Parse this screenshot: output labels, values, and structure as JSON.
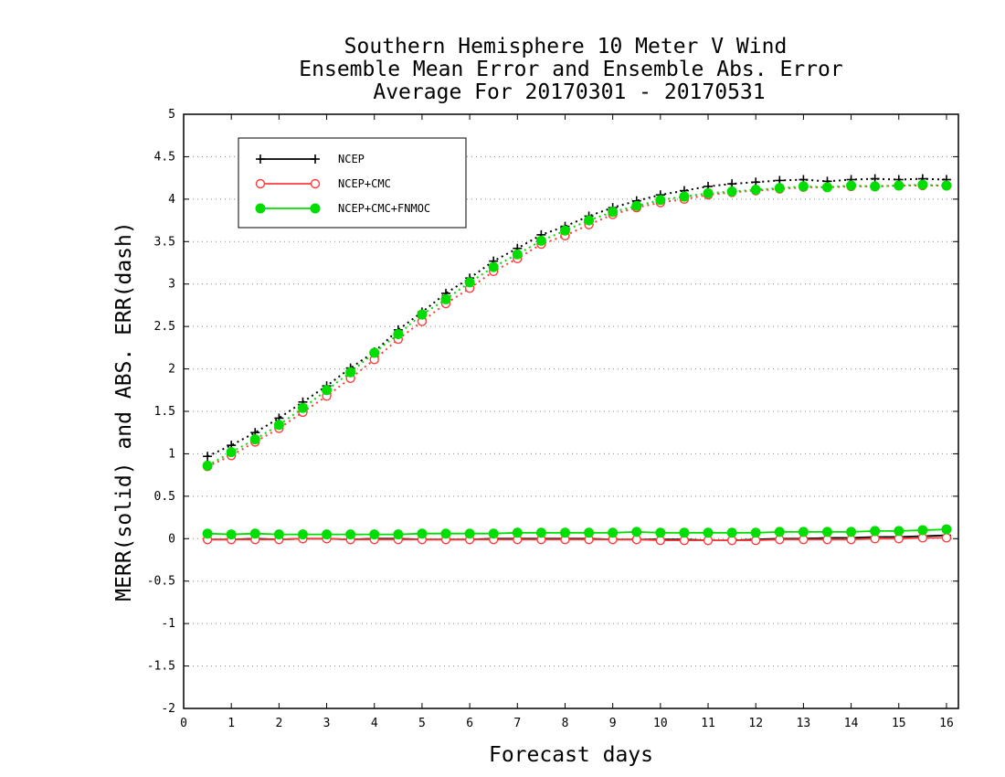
{
  "chart_data": {
    "type": "line",
    "title_lines": [
      "Southern Hemisphere 10 Meter V Wind",
      "Ensemble Mean Error and Ensemble Abs. Error",
      "Average For 20170301 - 20170531"
    ],
    "xlabel": "Forecast days",
    "ylabel": "MERR(solid) and ABS. ERR(dash)",
    "xlim": [
      0,
      16.25
    ],
    "ylim": [
      -2,
      5
    ],
    "xticks": [
      "0",
      "1",
      "2",
      "3",
      "4",
      "5",
      "6",
      "7",
      "8",
      "9",
      "10",
      "11",
      "12",
      "13",
      "14",
      "15",
      "16"
    ],
    "yticks": [
      "5",
      "4.5",
      "4",
      "3.5",
      "3",
      "2.5",
      "2",
      "1.5",
      "1",
      "0.5",
      "0",
      "-0.5",
      "-1",
      "-1.5",
      "-2"
    ],
    "grid": "horizontal dotted",
    "legend_position": "top-left",
    "x": [
      0.5,
      1,
      1.5,
      2,
      2.5,
      3,
      3.5,
      4,
      4.5,
      5,
      5.5,
      6,
      6.5,
      7,
      7.5,
      8,
      8.5,
      9,
      9.5,
      10,
      10.5,
      11,
      11.5,
      12,
      12.5,
      13,
      13.5,
      14,
      14.5,
      15,
      15.5,
      16
    ],
    "series": [
      {
        "name": "NCEP",
        "color": "#000000",
        "marker": "plus",
        "abs_err": [
          0.97,
          1.1,
          1.25,
          1.42,
          1.61,
          1.8,
          2.01,
          2.2,
          2.46,
          2.67,
          2.89,
          3.07,
          3.27,
          3.42,
          3.58,
          3.68,
          3.8,
          3.9,
          3.98,
          4.05,
          4.1,
          4.15,
          4.18,
          4.2,
          4.22,
          4.23,
          4.21,
          4.23,
          4.24,
          4.23,
          4.24,
          4.23
        ],
        "mean_err": [
          -0.01,
          -0.01,
          0.0,
          -0.01,
          0.0,
          0.0,
          -0.01,
          0.0,
          0.0,
          -0.01,
          -0.01,
          -0.01,
          0.0,
          0.0,
          0.0,
          0.0,
          0.0,
          -0.01,
          -0.01,
          -0.01,
          -0.01,
          -0.02,
          -0.02,
          -0.01,
          0.0,
          0.0,
          0.01,
          0.01,
          0.02,
          0.02,
          0.03,
          0.04
        ]
      },
      {
        "name": "NCEP+CMC",
        "color": "#ff3b3b",
        "marker": "circle-open",
        "abs_err": [
          0.85,
          0.98,
          1.14,
          1.3,
          1.49,
          1.68,
          1.89,
          2.11,
          2.35,
          2.56,
          2.77,
          2.95,
          3.15,
          3.3,
          3.47,
          3.57,
          3.7,
          3.82,
          3.9,
          3.96,
          4.0,
          4.05,
          4.08,
          4.1,
          4.12,
          4.14,
          4.14,
          4.15,
          4.15,
          4.16,
          4.16,
          4.16
        ],
        "mean_err": [
          -0.01,
          -0.01,
          -0.01,
          -0.01,
          0.0,
          0.0,
          -0.01,
          -0.01,
          -0.01,
          -0.01,
          -0.01,
          -0.01,
          -0.01,
          -0.01,
          -0.01,
          -0.01,
          -0.01,
          -0.01,
          -0.01,
          -0.02,
          -0.02,
          -0.02,
          -0.02,
          -0.02,
          -0.01,
          -0.01,
          -0.01,
          -0.01,
          0.0,
          0.0,
          0.01,
          0.01
        ]
      },
      {
        "name": "NCEP+CMC+FNMOC",
        "color": "#00dd00",
        "marker": "circle-filled",
        "abs_err": [
          0.86,
          1.02,
          1.17,
          1.34,
          1.54,
          1.75,
          1.96,
          2.19,
          2.41,
          2.64,
          2.82,
          3.02,
          3.2,
          3.35,
          3.51,
          3.63,
          3.75,
          3.85,
          3.92,
          3.99,
          4.03,
          4.07,
          4.09,
          4.11,
          4.13,
          4.15,
          4.14,
          4.16,
          4.15,
          4.16,
          4.17,
          4.16
        ],
        "mean_err": [
          0.06,
          0.05,
          0.06,
          0.05,
          0.05,
          0.05,
          0.05,
          0.05,
          0.05,
          0.06,
          0.06,
          0.06,
          0.06,
          0.07,
          0.07,
          0.07,
          0.07,
          0.07,
          0.08,
          0.07,
          0.07,
          0.07,
          0.07,
          0.07,
          0.08,
          0.08,
          0.08,
          0.08,
          0.09,
          0.09,
          0.1,
          0.11
        ]
      }
    ]
  }
}
